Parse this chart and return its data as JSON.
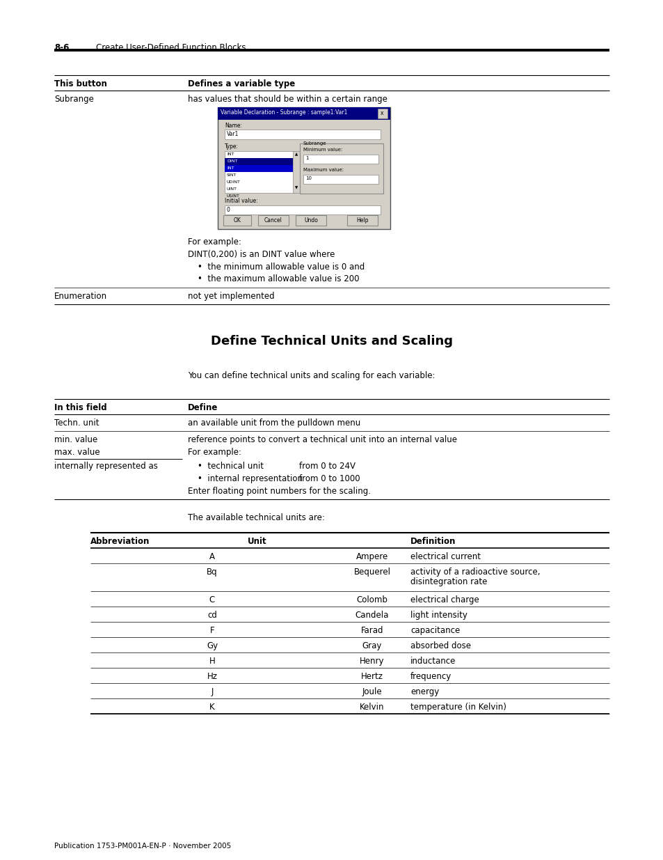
{
  "page_header_num": "8-6",
  "page_header_text": "Create User-Defined Function Blocks",
  "page_footer": "Publication 1753-PM001A-EN-P · November 2005",
  "table1_header": [
    "This button",
    "Defines a variable type"
  ],
  "subrange_extra": [
    "For example:",
    "DINT(0,200) is an DINT value where",
    "•  the minimum allowable value is 0 and",
    "•  the maximum allowable value is 200"
  ],
  "section_title": "Define Technical Units and Scaling",
  "section_intro": "You can define technical units and scaling for each variable:",
  "table2_header": [
    "In this field",
    "Define"
  ],
  "table3_intro": "The available technical units are:",
  "table3_header": [
    "Abbreviation",
    "Unit",
    "Definition"
  ],
  "table3_rows": [
    [
      "A",
      "Ampere",
      "electrical current"
    ],
    [
      "Bq",
      "Bequerel",
      "activity of a radioactive source,\ndisintegration rate"
    ],
    [
      "C",
      "Colomb",
      "electrical charge"
    ],
    [
      "cd",
      "Candela",
      "light intensity"
    ],
    [
      "F",
      "Farad",
      "capacitance"
    ],
    [
      "Gy",
      "Gray",
      "absorbed dose"
    ],
    [
      "H",
      "Henry",
      "inductance"
    ],
    [
      "Hz",
      "Hertz",
      "frequency"
    ],
    [
      "J",
      "Joule",
      "energy"
    ],
    [
      "K",
      "Kelvin",
      "temperature (in Kelvin)"
    ]
  ],
  "bg_color": "#ffffff"
}
